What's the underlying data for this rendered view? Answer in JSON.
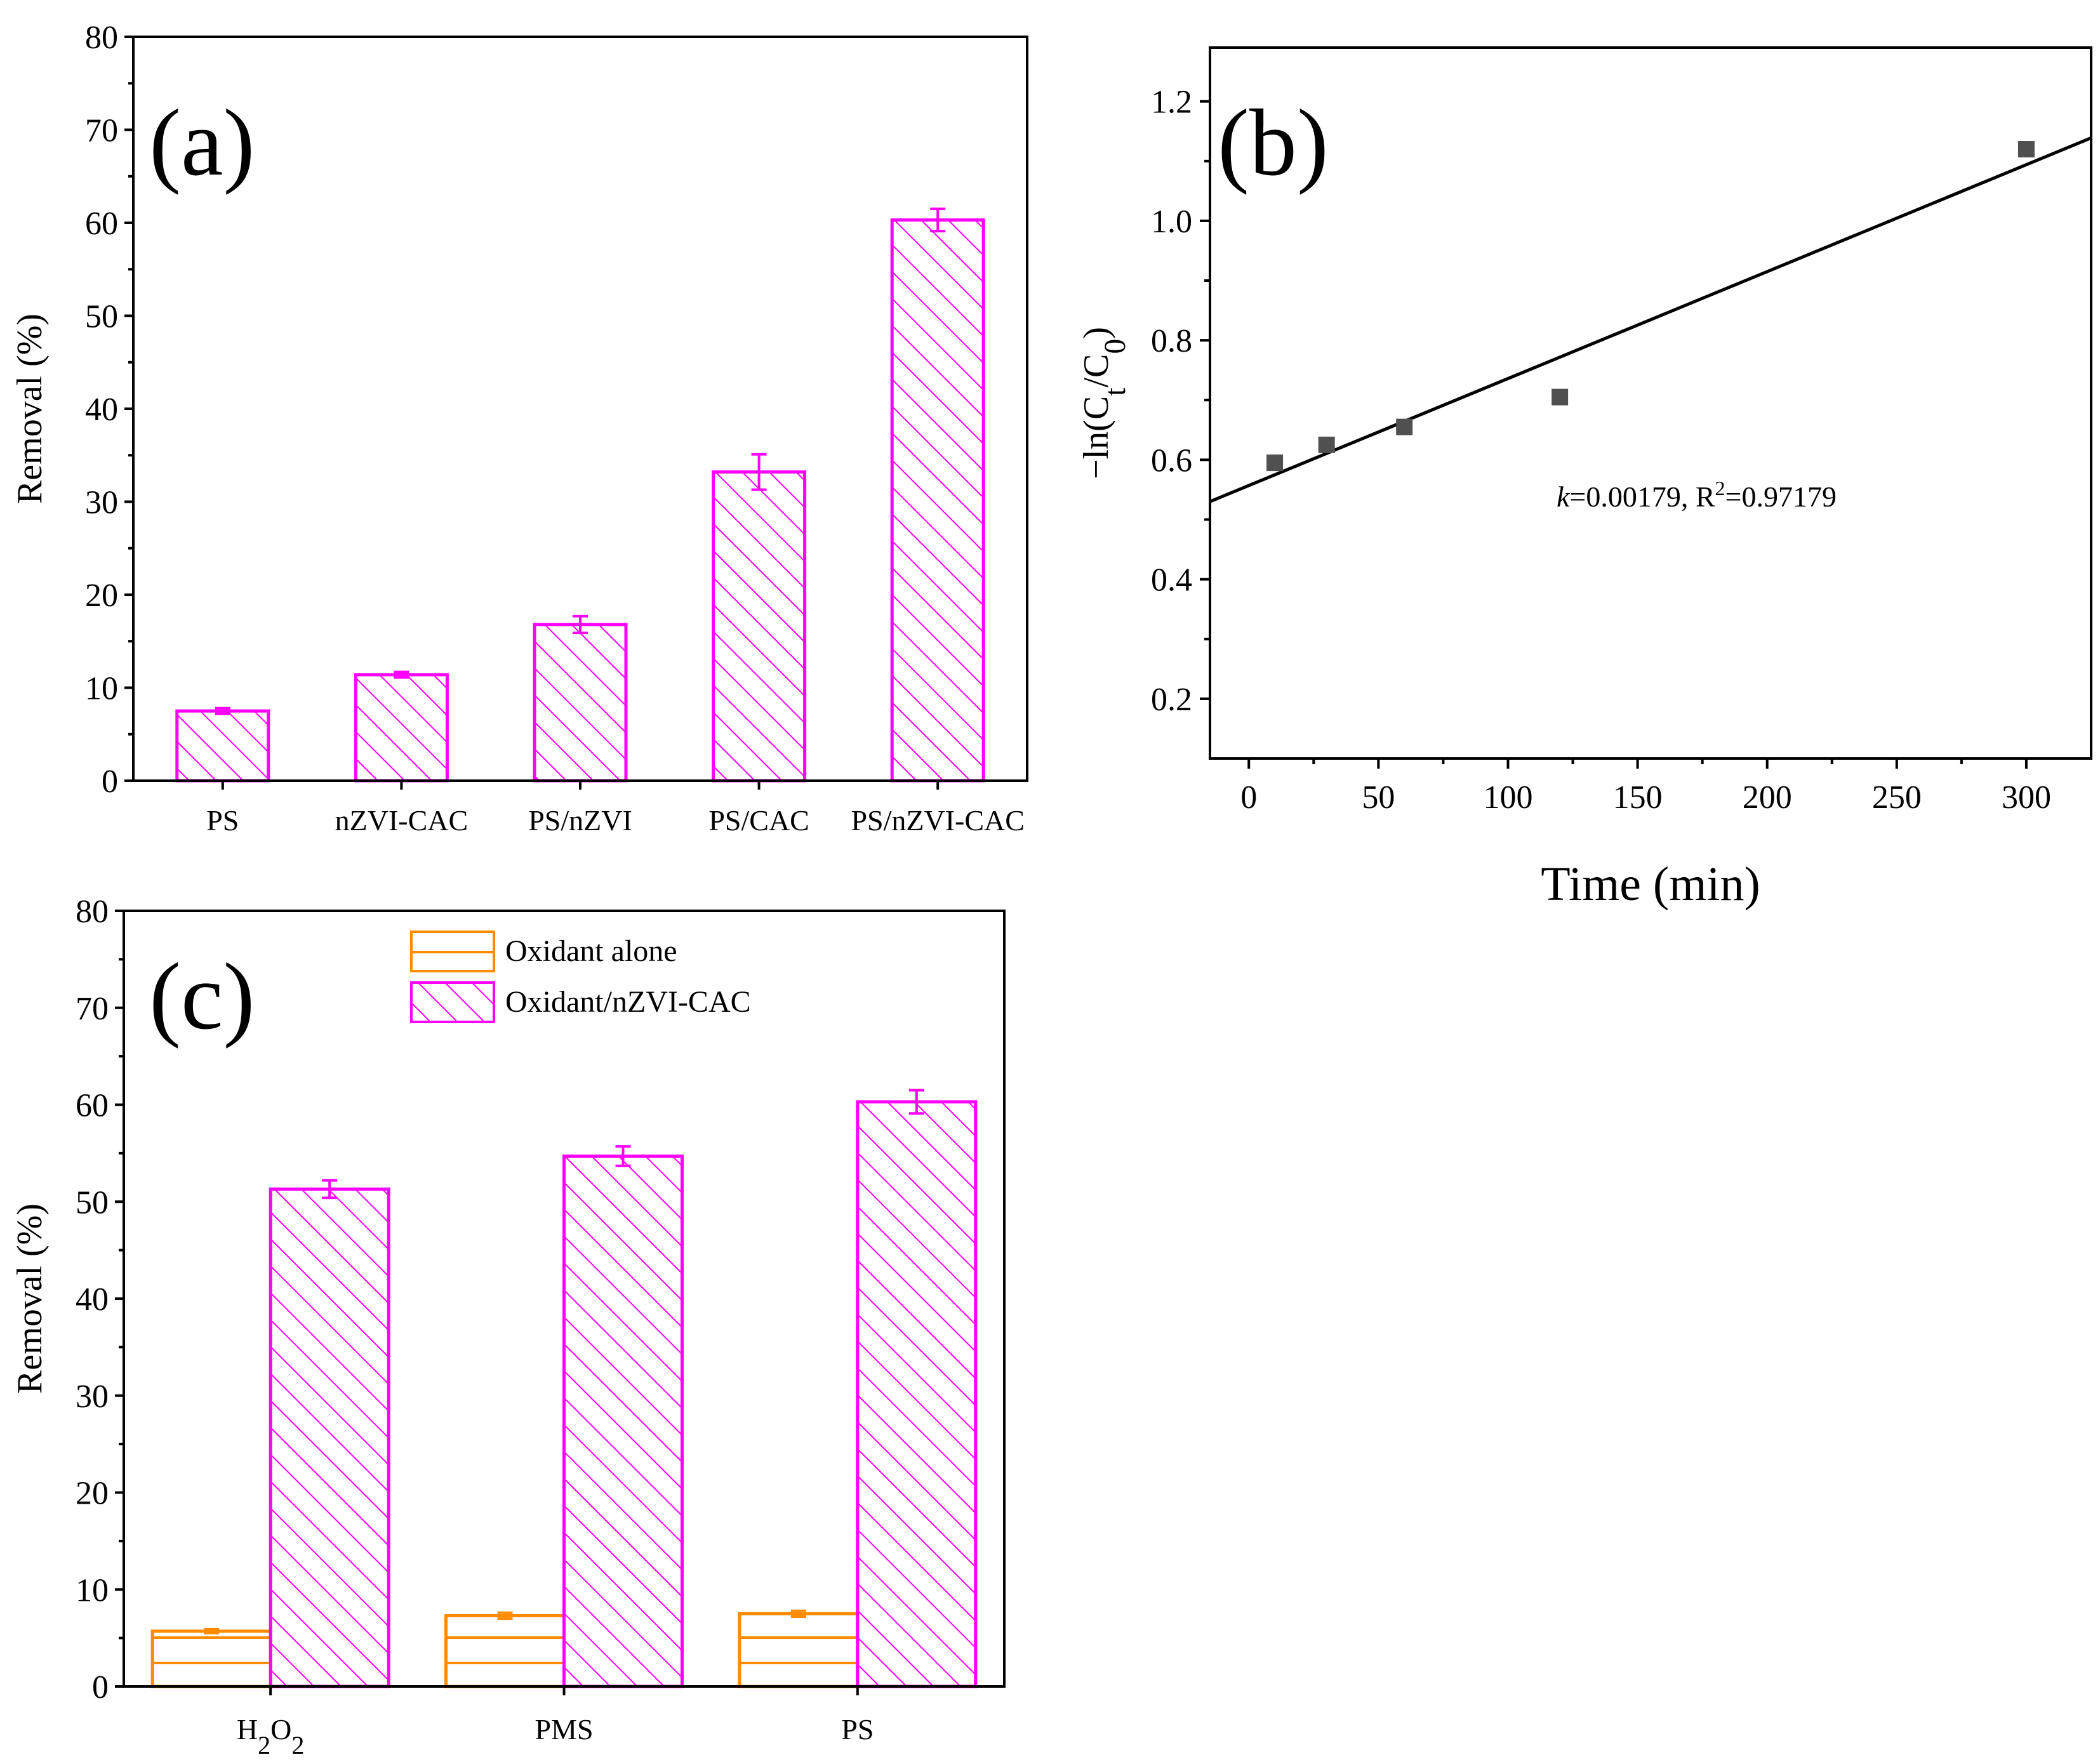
{
  "colors": {
    "magenta": "#ff00ff",
    "orange": "#ff8c00",
    "line": "#000000",
    "marker": "#505050"
  },
  "chart_data": [
    {
      "id": "a",
      "type": "bar",
      "panel_label": "(a)",
      "ylabel": "Removal (%)",
      "ylim": [
        0,
        80
      ],
      "yticks": [
        "0",
        "10",
        "20",
        "30",
        "40",
        "50",
        "60",
        "70",
        "80"
      ],
      "categories": [
        "PS",
        "nZVI-CAC",
        "PS/nZVI",
        "PS/CAC",
        "PS/nZVI-CAC"
      ],
      "values": [
        7.5,
        11.4,
        16.8,
        33.2,
        60.3
      ],
      "errors": [
        0.3,
        0.3,
        0.9,
        1.9,
        1.2
      ]
    },
    {
      "id": "b",
      "type": "scatter",
      "panel_label": "(b)",
      "xlabel": "Time (min)",
      "ylabel_parts": [
        "−ln(C",
        "t",
        "/C",
        "0",
        ")"
      ],
      "xlim": [
        -15,
        325
      ],
      "ylim": [
        0.1,
        1.29
      ],
      "xticks": [
        "0",
        "50",
        "100",
        "150",
        "200",
        "250",
        "300"
      ],
      "yticks": [
        "0.2",
        "0.4",
        "0.6",
        "0.8",
        "1.0",
        "1.2"
      ],
      "points": {
        "x": [
          10,
          30,
          60,
          120,
          300
        ],
        "y": [
          0.595,
          0.625,
          0.655,
          0.705,
          1.12
        ]
      },
      "fit": {
        "intercept": 0.557,
        "slope": 0.00179
      },
      "annotation": {
        "k": "k",
        "k_text": "=0.00179, R",
        "sup": "2",
        "tail": "=0.97179"
      }
    },
    {
      "id": "c",
      "type": "bar",
      "panel_label": "(c)",
      "ylabel": "Removal (%)",
      "ylim": [
        0,
        80
      ],
      "yticks": [
        "0",
        "10",
        "20",
        "30",
        "40",
        "50",
        "60",
        "70",
        "80"
      ],
      "categories": [
        "H2O2",
        "PMS",
        "PS"
      ],
      "category_display": [
        [
          "H",
          "2",
          "O",
          "2"
        ],
        [
          "PMS"
        ],
        [
          "PS"
        ]
      ],
      "series": [
        {
          "name": "Oxidant alone",
          "values": [
            5.7,
            7.3,
            7.5
          ],
          "errors": [
            0.2,
            0.3,
            0.3
          ]
        },
        {
          "name": "Oxidant/nZVI-CAC",
          "values": [
            51.3,
            54.7,
            60.3
          ],
          "errors": [
            0.9,
            1.0,
            1.2
          ]
        }
      ],
      "legend": [
        "Oxidant alone",
        "Oxidant/nZVI-CAC"
      ]
    }
  ]
}
